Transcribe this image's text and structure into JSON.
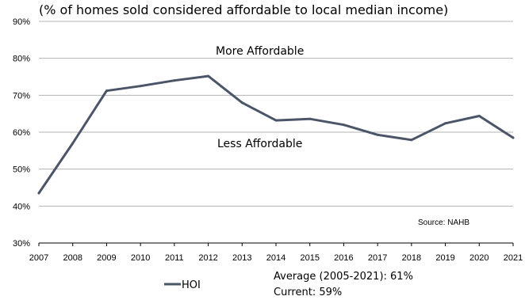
{
  "chart_data": {
    "type": "line",
    "subtitle": "(% of homes sold considered affordable to local median income)",
    "title": "",
    "xlabel": "",
    "ylabel": "",
    "x": [
      "2007",
      "2008",
      "2009",
      "2010",
      "2011",
      "2012",
      "2013",
      "2014",
      "2015",
      "2016",
      "2017",
      "2018",
      "2019",
      "2020",
      "2021"
    ],
    "y_ticks": [
      "30%",
      "40%",
      "50%",
      "60%",
      "70%",
      "80%",
      "90%"
    ],
    "ylim": [
      30,
      90
    ],
    "grid": true,
    "series": [
      {
        "name": "HOI",
        "color": "#4a5568",
        "values": [
          43.5,
          57,
          71.2,
          72.5,
          74,
          75.2,
          68,
          63.2,
          63.6,
          62,
          59.3,
          57.9,
          62.4,
          64.4,
          58.5
        ]
      }
    ],
    "annotations": {
      "upper": "More Affordable",
      "lower": "Less Affordable",
      "source": "Source: NAHB"
    },
    "legend": {
      "placement": "bottom-left",
      "label": "HOI"
    },
    "stats": {
      "average": "Average (2005-2021): 61%",
      "current": "Current: 59%"
    }
  }
}
